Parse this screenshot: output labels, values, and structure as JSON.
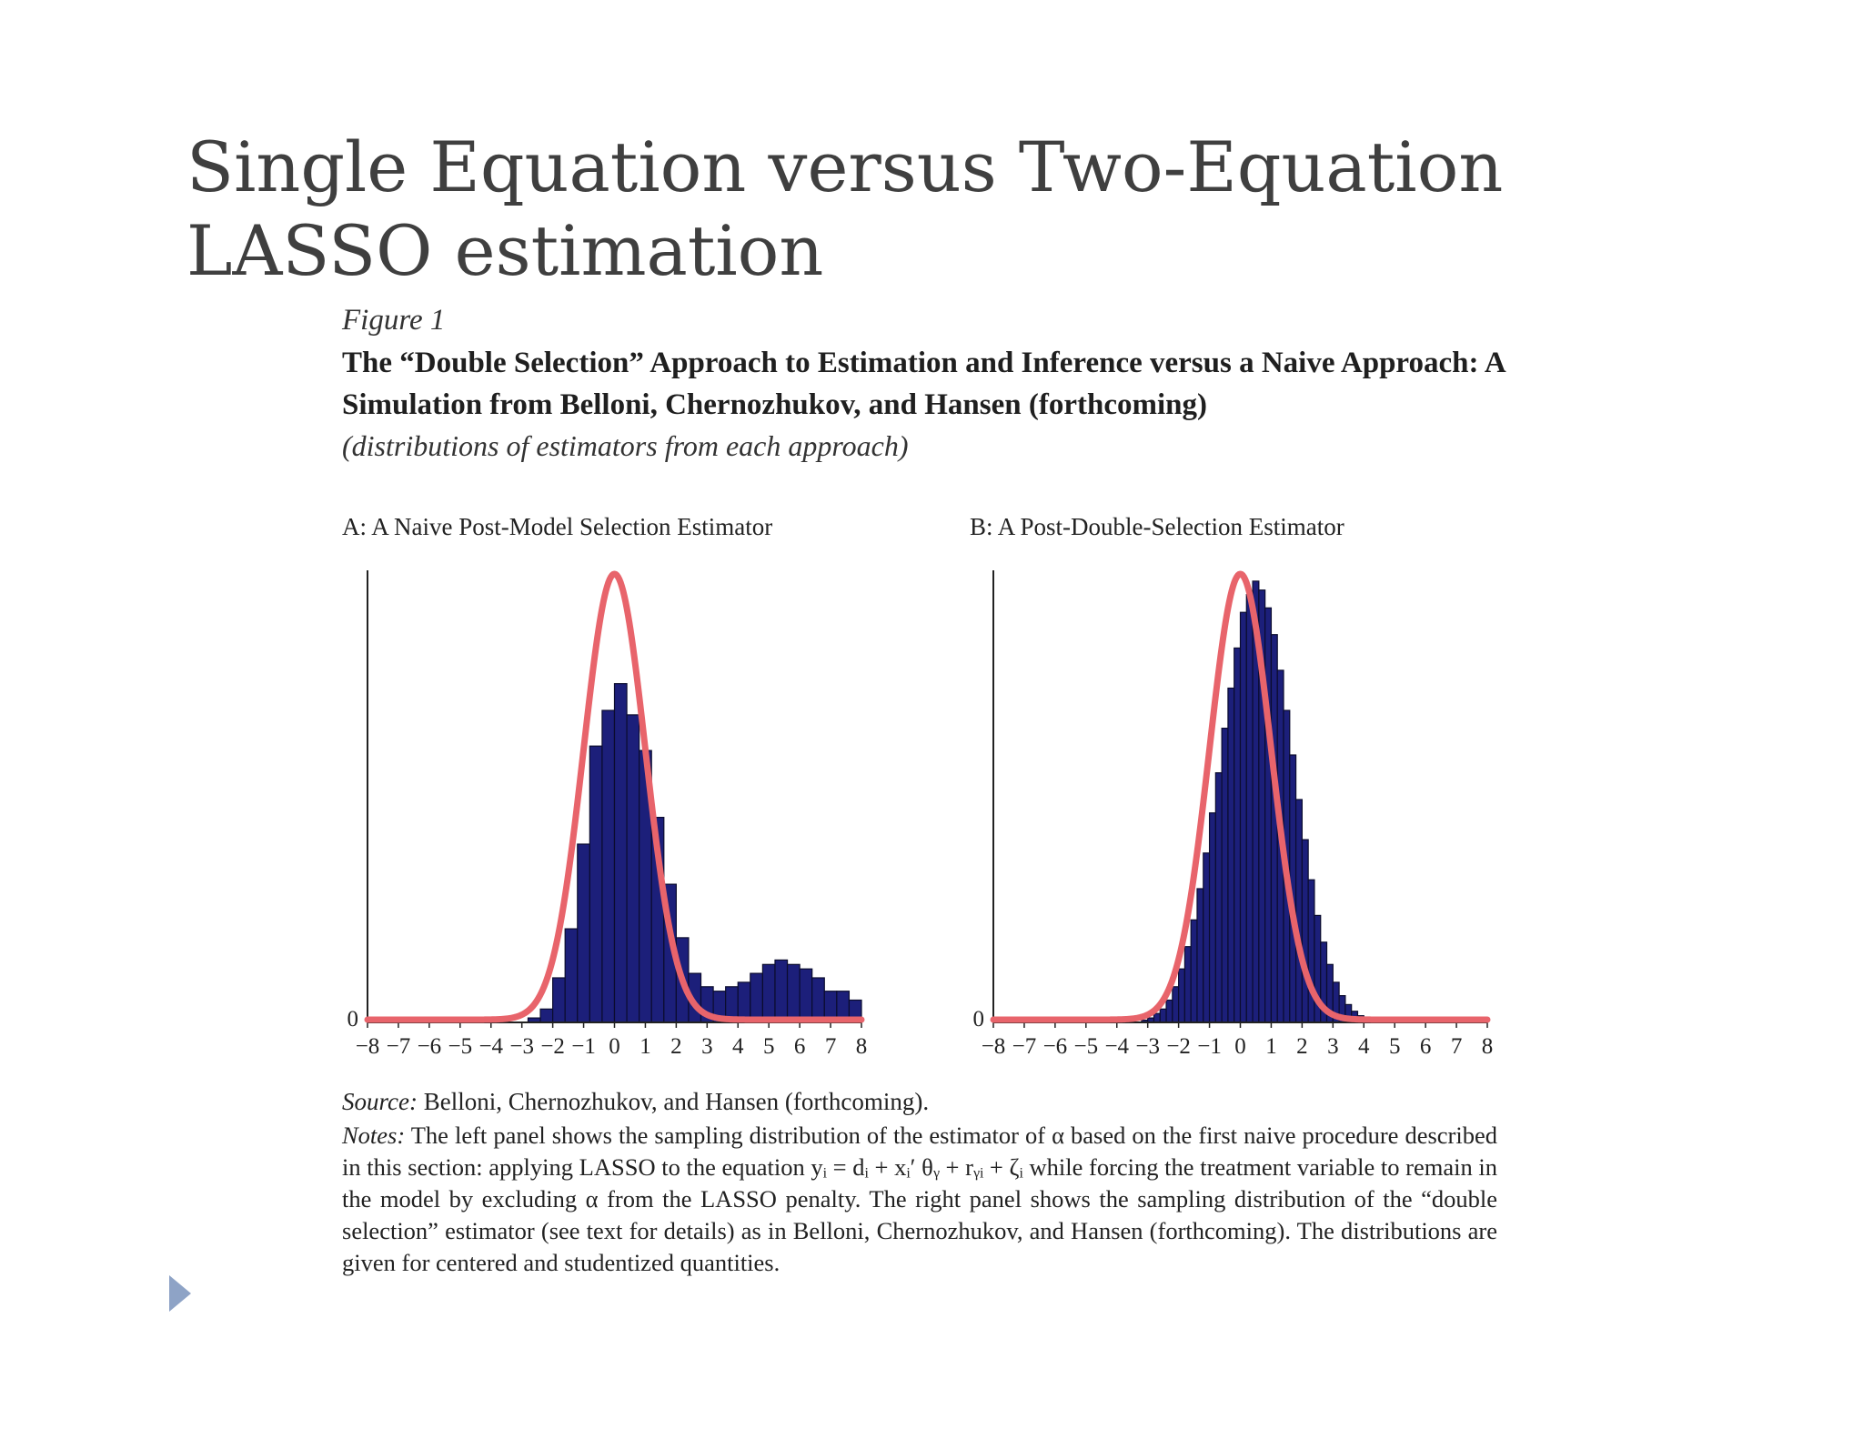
{
  "slide": {
    "title": "Single Equation versus Two-Equation LASSO estimation"
  },
  "figure": {
    "label": "Figure 1",
    "title": "The “Double Selection” Approach to Estimation and Inference versus a Naive Approach: A Simulation from Belloni, Chernozhukov, and Hansen (forthcoming)",
    "subtitle": "(distributions of estimators from each approach)",
    "source_label": "Source:",
    "source_text": " Belloni, Chernozhukov, and Hansen (forthcoming).",
    "notes_label": "Notes:",
    "notes_text": " The left panel shows the sampling distribution of the estimator of α based on the first naive procedure described in this section: applying LASSO to the equation yᵢ = dᵢ + xᵢ′ θᵧ + rᵧᵢ + ζᵢ while forcing the treatment variable to remain in the model by excluding α from the LASSO penalty. The right panel shows the sampling distribution of the “double selection” estimator (see text for details) as in Belloni, Chernozhukov, and Hansen (forthcoming). The distributions are given for centered and studentized quantities."
  },
  "colors": {
    "bar_fill": "#1c1f7a",
    "bar_stroke": "#0b0c2e",
    "curve": "#e8646b",
    "axis": "#222222",
    "nav_arrow": "#8ea3c6"
  },
  "chart_data": [
    {
      "type": "bar",
      "title": "A: A Naive Post-Model Selection Estimator",
      "x_ticks": [
        "−8",
        "−7",
        "−6",
        "−5",
        "−4",
        "−3",
        "−2",
        "−1",
        "0",
        "1",
        "2",
        "3",
        "4",
        "5",
        "6",
        "7",
        "8"
      ],
      "y_tick": "0",
      "xlim": [
        -8,
        8
      ],
      "ylim": [
        0,
        1
      ],
      "histogram": {
        "bin_width": 0.4,
        "bin_start": -2.8,
        "values": [
          0.01,
          0.03,
          0.1,
          0.21,
          0.4,
          0.62,
          0.7,
          0.76,
          0.69,
          0.61,
          0.46,
          0.31,
          0.19,
          0.11,
          0.08,
          0.07,
          0.08,
          0.09,
          0.11,
          0.13,
          0.14,
          0.13,
          0.12,
          0.1,
          0.07,
          0.07,
          0.05
        ]
      },
      "reference_curve": {
        "type": "normal",
        "mean": 0,
        "sd": 1,
        "peak": 1.0
      }
    },
    {
      "type": "bar",
      "title": "B: A Post-Double-Selection Estimator",
      "x_ticks": [
        "−8",
        "−7",
        "−6",
        "−5",
        "−4",
        "−3",
        "−2",
        "−1",
        "0",
        "1",
        "2",
        "3",
        "4",
        "5",
        "6",
        "7",
        "8"
      ],
      "y_tick": "0",
      "xlim": [
        -8,
        8
      ],
      "ylim": [
        0,
        1
      ],
      "histogram": {
        "bin_width": 0.2,
        "bin_start": -3.2,
        "values": [
          0.005,
          0.01,
          0.02,
          0.03,
          0.05,
          0.08,
          0.12,
          0.17,
          0.23,
          0.3,
          0.38,
          0.47,
          0.56,
          0.66,
          0.75,
          0.84,
          0.92,
          0.96,
          0.99,
          0.97,
          0.93,
          0.87,
          0.79,
          0.7,
          0.6,
          0.5,
          0.41,
          0.32,
          0.24,
          0.18,
          0.13,
          0.09,
          0.06,
          0.04,
          0.025,
          0.015,
          0.008,
          0.004
        ]
      },
      "reference_curve": {
        "type": "normal",
        "mean": 0,
        "sd": 1,
        "peak": 1.0
      }
    }
  ]
}
